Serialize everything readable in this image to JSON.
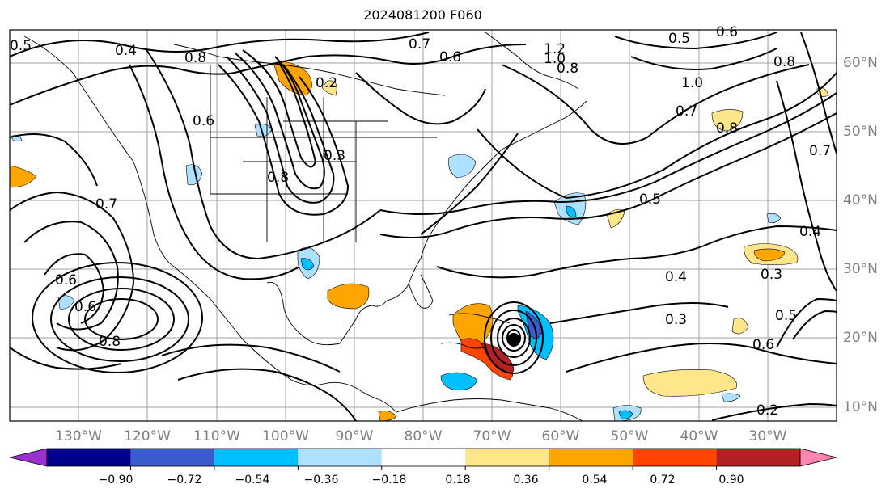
{
  "title": "2024081200 F060",
  "map": {
    "longitude_labels": [
      "130°W",
      "120°W",
      "110°W",
      "100°W",
      "90°W",
      "80°W",
      "70°W",
      "60°W",
      "50°W",
      "40°W",
      "30°W"
    ],
    "latitude_labels": [
      "60°N",
      "50°N",
      "40°N",
      "30°N",
      "20°N",
      "10°N"
    ],
    "contour_labels": [
      "0.4",
      "0.8",
      "0.5",
      "0.7",
      "0.6",
      "1.2",
      "1.0",
      "0.8",
      "0.5",
      "0.6",
      "0.8",
      "1.0",
      "0.7",
      "0.8",
      "0.2",
      "0.6",
      "0.3",
      "0.8",
      "0.7",
      "0.5",
      "0.7",
      "0.4",
      "0.6",
      "0.8",
      "0.4",
      "0.3",
      "0.5",
      "0.2",
      "0.6",
      "0.6",
      "0.3"
    ]
  },
  "colorbar": {
    "ticks": [
      "−0.90",
      "−0.72",
      "−0.54",
      "−0.36",
      "−0.18",
      "0.18",
      "0.36",
      "0.54",
      "0.72",
      "0.90"
    ],
    "colors": [
      "#9b30d0",
      "#00008b",
      "#3a5bcc",
      "#00bfff",
      "#aee0ff",
      "#ffffff",
      "#ffe68a",
      "#ffa500",
      "#ff4500",
      "#b22222",
      "#ff85b0"
    ]
  }
}
